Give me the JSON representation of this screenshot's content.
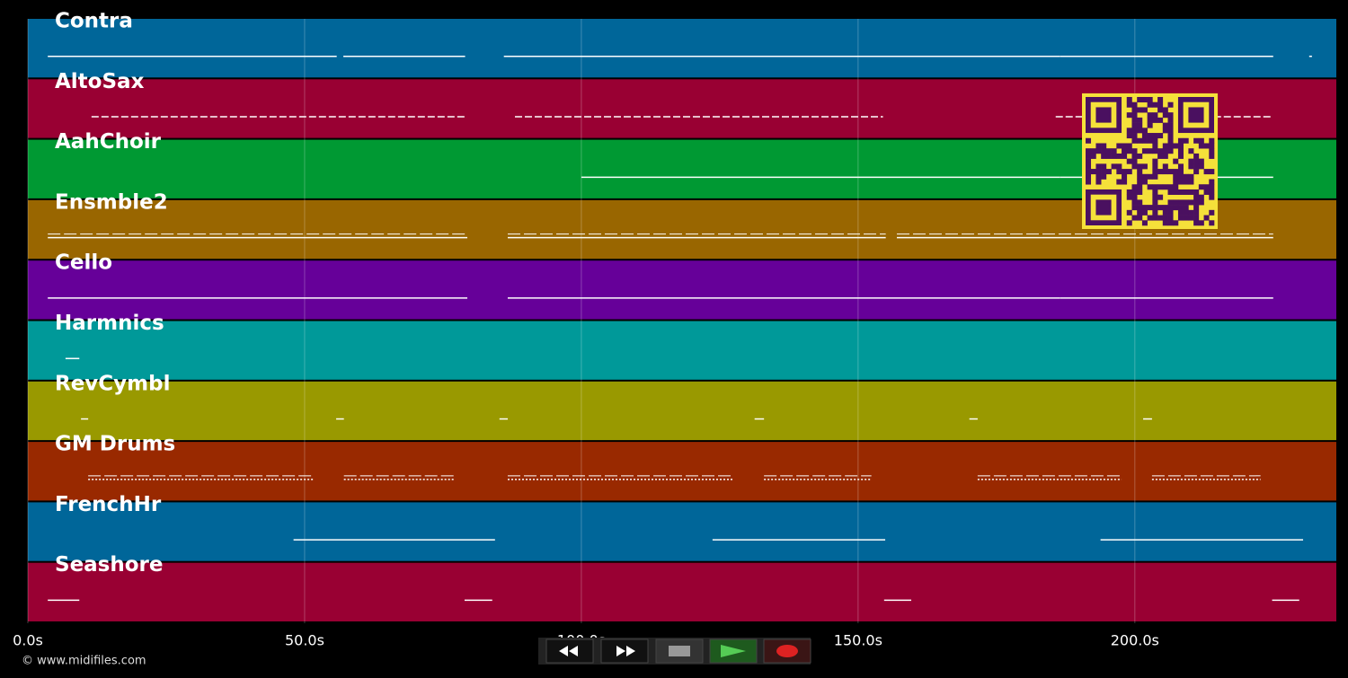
{
  "tracks": [
    {
      "name": "Contra",
      "color": "#006699",
      "phrases": [
        [
          3.6,
          55.8
        ],
        [
          57,
          79
        ],
        [
          86,
          186.5
        ],
        [
          186.5,
          225
        ],
        [
          231.5,
          232
        ]
      ]
    },
    {
      "name": "AltoSax",
      "color": "#990033",
      "phrases": [
        [
          11.5,
          79
        ],
        [
          88,
          154.5
        ],
        [
          185.7,
          224.7
        ]
      ]
    },
    {
      "name": "AahChoir",
      "color": "#009933",
      "phrases": [
        [
          100,
          186.5
        ],
        [
          186.5,
          225
        ]
      ]
    },
    {
      "name": "Ensmble2",
      "color": "#996600",
      "phrases": [
        [
          3.6,
          79.4
        ],
        [
          86.7,
          155
        ],
        [
          157,
          225
        ]
      ]
    },
    {
      "name": "Cello",
      "color": "#660099",
      "phrases": [
        [
          3.6,
          79.4
        ],
        [
          86.7,
          186.5
        ],
        [
          186.5,
          225
        ]
      ]
    },
    {
      "name": "Harmnics",
      "color": "#009999",
      "phrases": [
        [
          6.8,
          9.3
        ]
      ]
    },
    {
      "name": "RevCymbl",
      "color": "#999900",
      "phrases": [
        [
          9.6,
          10.9
        ],
        [
          55.7,
          57.1
        ],
        [
          85.2,
          86.7
        ],
        [
          131.3,
          133
        ],
        [
          170.1,
          171.6
        ],
        [
          201.5,
          203.1
        ]
      ]
    },
    {
      "name": "GM Drums",
      "color": "#992900",
      "phrases": [
        [
          10.9,
          51.8
        ],
        [
          57.1,
          77
        ],
        [
          86.7,
          127.6
        ],
        [
          133,
          152.4
        ],
        [
          171.6,
          197.6
        ],
        [
          203.1,
          222.7
        ]
      ]
    },
    {
      "name": "FrenchHr",
      "color": "#006699",
      "phrases": [
        [
          48,
          84.4
        ],
        [
          123.7,
          154.9
        ],
        [
          193.8,
          230.4
        ]
      ]
    },
    {
      "name": "Seashore",
      "color": "#990033",
      "phrases": [
        [
          3.6,
          9.3
        ],
        [
          78.9,
          83.9
        ],
        [
          154.7,
          159.6
        ],
        [
          224.8,
          229.7
        ]
      ]
    }
  ],
  "timeline": {
    "xlim": [
      0,
      236.4
    ],
    "xticks": [
      {
        "value": 0,
        "label": "0.0s"
      },
      {
        "value": 50,
        "label": "50.0s"
      },
      {
        "value": 100,
        "label": "100.0s"
      },
      {
        "value": 150,
        "label": "150.0s"
      },
      {
        "value": 200,
        "label": "200.0s"
      }
    ]
  },
  "footer": {
    "copyright": "© www.midifiles.com"
  }
}
